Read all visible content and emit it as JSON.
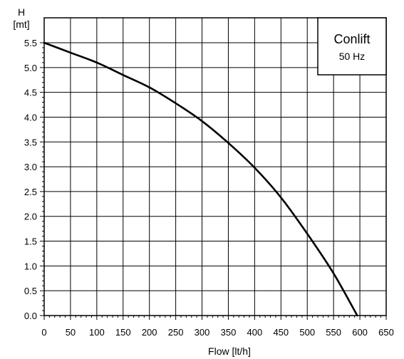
{
  "chart_data": {
    "type": "line",
    "xlabel": "Flow [lt/h]",
    "ylabel_top": "H",
    "ylabel_unit": "[mt]",
    "xlim": [
      0,
      650
    ],
    "ylim": [
      0,
      5.5
    ],
    "x_ticks": [
      0,
      50,
      100,
      150,
      200,
      250,
      300,
      350,
      400,
      450,
      500,
      550,
      600,
      650
    ],
    "y_ticks": [
      "0.0",
      "0.5",
      "1.0",
      "1.5",
      "2.0",
      "2.5",
      "3.0",
      "3.5",
      "4.0",
      "4.5",
      "5.0",
      "5.5"
    ],
    "grid": true,
    "legend": {
      "title": "Conlift",
      "subtitle": "50 Hz",
      "position": "top-right"
    },
    "series": [
      {
        "x": [
          0,
          50,
          100,
          150,
          200,
          250,
          300,
          350,
          400,
          450,
          500,
          550,
          595
        ],
        "y": [
          5.5,
          5.3,
          5.1,
          4.85,
          4.6,
          4.28,
          3.92,
          3.48,
          2.98,
          2.38,
          1.65,
          0.85,
          0.0
        ]
      }
    ]
  }
}
